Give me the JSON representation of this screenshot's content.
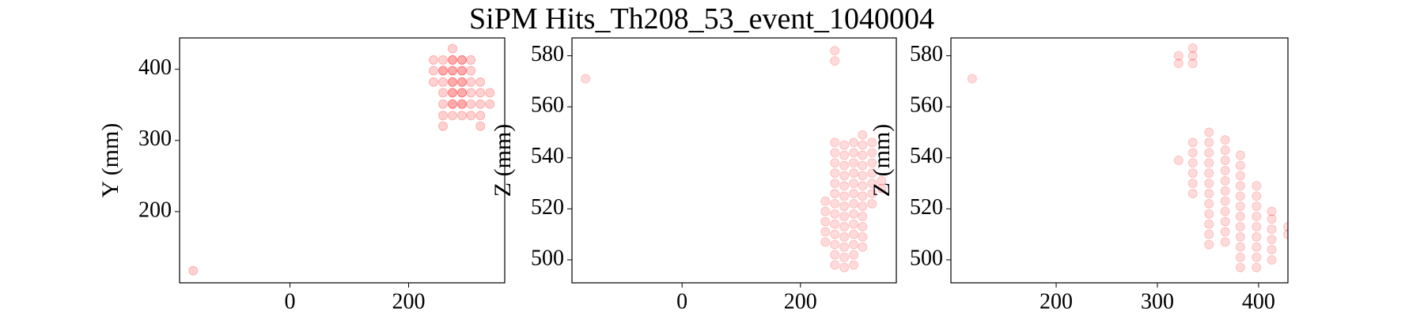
{
  "title": "SiPM Hits_Th208_53_event_1040004",
  "chart_data": [
    {
      "type": "scatter",
      "ylabel": "Y (mm)",
      "color": "#ff0000",
      "alpha": 0.18,
      "xlim": [
        -186,
        362
      ],
      "ylim": [
        100,
        444
      ],
      "xticks": [
        0,
        200
      ],
      "yticks": [
        200,
        300,
        400
      ],
      "x": [
        -163,
        274,
        242,
        258,
        274,
        290,
        305,
        242,
        258,
        274,
        290,
        305,
        242,
        258,
        274,
        290,
        305,
        321,
        258,
        274,
        290,
        305,
        321,
        337,
        258,
        274,
        290,
        305,
        321,
        337,
        258,
        274,
        290,
        305,
        321,
        258,
        321,
        258,
        274,
        290,
        274,
        290,
        274,
        290,
        274,
        290,
        274,
        290
      ],
      "y": [
        117,
        429,
        413,
        413,
        413,
        413,
        413,
        398,
        398,
        398,
        398,
        398,
        382,
        382,
        382,
        382,
        382,
        382,
        367,
        367,
        367,
        367,
        367,
        367,
        351,
        351,
        351,
        351,
        351,
        351,
        335,
        335,
        335,
        335,
        335,
        320,
        320,
        398,
        398,
        398,
        382,
        382,
        367,
        367,
        351,
        351,
        413,
        413
      ]
    },
    {
      "type": "scatter",
      "ylabel": "Z (mm)",
      "color": "#ff0000",
      "alpha": 0.14,
      "xlim": [
        -186,
        362
      ],
      "ylim": [
        491,
        587
      ],
      "xticks": [
        0,
        200
      ],
      "yticks": [
        500,
        520,
        540,
        560,
        580
      ],
      "x": [
        -163,
        242,
        242,
        242,
        242,
        242,
        258,
        258,
        258,
        258,
        258,
        258,
        258,
        258,
        258,
        258,
        258,
        258,
        258,
        258,
        258,
        274,
        274,
        274,
        274,
        274,
        274,
        274,
        274,
        274,
        274,
        274,
        274,
        274,
        290,
        290,
        290,
        290,
        290,
        290,
        290,
        290,
        290,
        290,
        290,
        290,
        290,
        305,
        305,
        305,
        305,
        305,
        305,
        305,
        305,
        305,
        305,
        305,
        305,
        321,
        321,
        321,
        321,
        321,
        321,
        321,
        337,
        337
      ],
      "y": [
        571,
        507,
        511,
        515,
        519,
        523,
        498,
        502,
        506,
        510,
        514,
        518,
        522,
        526,
        530,
        534,
        538,
        542,
        546,
        578,
        582,
        497,
        501,
        505,
        509,
        513,
        517,
        521,
        525,
        529,
        533,
        537,
        541,
        545,
        498,
        502,
        506,
        510,
        514,
        518,
        522,
        526,
        530,
        534,
        538,
        542,
        546,
        505,
        509,
        513,
        517,
        521,
        525,
        529,
        533,
        537,
        541,
        545,
        549,
        522,
        526,
        530,
        534,
        538,
        542,
        546,
        528,
        531
      ]
    },
    {
      "type": "scatter",
      "ylabel": "Z (mm)",
      "color": "#ff0000",
      "alpha": 0.14,
      "xlim": [
        96,
        429
      ],
      "ylim": [
        491,
        587
      ],
      "xticks": [
        200,
        300,
        400
      ],
      "yticks": [
        500,
        520,
        540,
        560,
        580
      ],
      "x": [
        117,
        321,
        321,
        321,
        335,
        335,
        335,
        335,
        335,
        335,
        335,
        335,
        335,
        351,
        351,
        351,
        351,
        351,
        351,
        351,
        351,
        351,
        351,
        351,
        351,
        367,
        367,
        367,
        367,
        367,
        367,
        367,
        367,
        367,
        367,
        367,
        382,
        382,
        382,
        382,
        382,
        382,
        382,
        382,
        382,
        382,
        382,
        382,
        398,
        398,
        398,
        398,
        398,
        398,
        398,
        398,
        398,
        413,
        413,
        413,
        413,
        413,
        413,
        429,
        429
      ],
      "y": [
        571,
        539,
        577,
        580,
        526,
        530,
        534,
        538,
        542,
        546,
        577,
        580,
        583,
        506,
        510,
        514,
        518,
        522,
        526,
        530,
        534,
        538,
        542,
        546,
        550,
        507,
        511,
        515,
        519,
        523,
        527,
        531,
        535,
        539,
        543,
        547,
        497,
        501,
        505,
        509,
        513,
        517,
        521,
        525,
        529,
        533,
        537,
        541,
        497,
        501,
        505,
        509,
        513,
        517,
        521,
        525,
        529,
        500,
        504,
        508,
        512,
        516,
        519,
        510,
        513
      ]
    }
  ]
}
